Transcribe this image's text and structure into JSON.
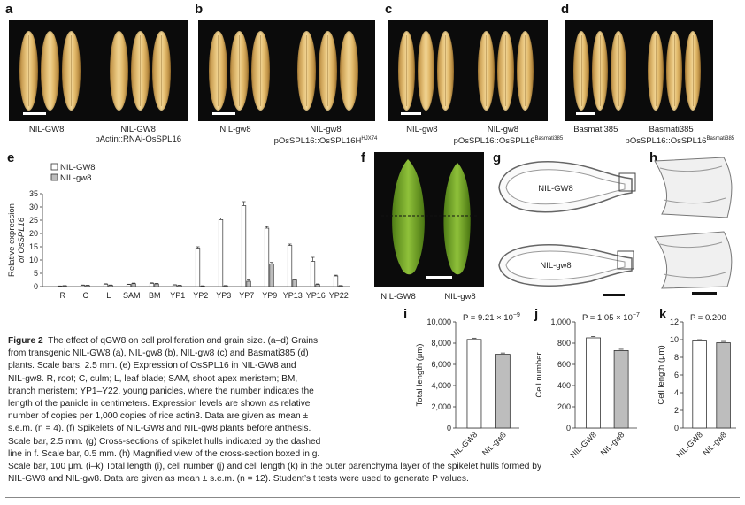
{
  "panels_top": [
    {
      "letter": "a",
      "left_label": "NIL-GW8",
      "right_label_1": "NIL-GW8",
      "right_label_2": "pActin::RNAi-OsSPL16"
    },
    {
      "letter": "b",
      "left_label": "NIL-gw8",
      "right_label_1": "NIL-gw8",
      "right_label_2": "pOsSPL16::OsSPL16H",
      "right_sup": "HJX74"
    },
    {
      "letter": "c",
      "left_label": "NIL-gw8",
      "right_label_1": "NIL-gw8",
      "right_label_2": "pOsSPL16::OsSPL16",
      "right_sup": "Basmati385"
    },
    {
      "letter": "d",
      "left_label": "Basmati385",
      "right_label_1": "Basmati385",
      "right_label_2": "pOsSPL16::OsSPL16",
      "right_sup": "Basmati385"
    }
  ],
  "panel_e": {
    "letter": "e",
    "legend": [
      "NIL-GW8",
      "NIL-gw8"
    ],
    "ylabel_1": "Relative expression",
    "ylabel_2": "of OsSPL16"
  },
  "panel_f": {
    "letter": "f",
    "labels": [
      "NIL-GW8",
      "NIL-gw8"
    ]
  },
  "panel_g": {
    "letter": "g",
    "labels": [
      "NIL-GW8",
      "NIL-gw8"
    ]
  },
  "panel_h": {
    "letter": "h"
  },
  "panel_i": {
    "letter": "i",
    "pvalue": "P = 9.21 × 10",
    "pexp": "−9"
  },
  "panel_j": {
    "letter": "j",
    "pvalue": "P = 1.05 × 10",
    "pexp": "−7"
  },
  "panel_k": {
    "letter": "k",
    "pvalue": "P = 0.200"
  },
  "chart_data": [
    {
      "type": "bar",
      "panel": "e",
      "categories": [
        "R",
        "C",
        "L",
        "SAM",
        "BM",
        "YP1",
        "YP2",
        "YP3",
        "YP7",
        "YP9",
        "YP13",
        "YP16",
        "YP22"
      ],
      "series": [
        {
          "name": "NIL-GW8",
          "values": [
            0.2,
            0.5,
            0.9,
            0.8,
            1.2,
            0.6,
            14.5,
            25.2,
            30.5,
            22.0,
            15.5,
            9.5,
            4.0
          ]
        },
        {
          "name": "NIL-gw8",
          "values": [
            0.3,
            0.4,
            0.5,
            1.1,
            1.0,
            0.4,
            0.2,
            0.3,
            2.0,
            8.5,
            2.5,
            0.8,
            0.3
          ]
        }
      ],
      "errors": [
        [
          0.05,
          0.1,
          0.15,
          0.1,
          0.2,
          0.1,
          0.5,
          0.6,
          1.5,
          0.6,
          0.5,
          1.5,
          0.3
        ],
        [
          0.05,
          0.1,
          0.1,
          0.2,
          0.2,
          0.1,
          0.1,
          0.1,
          0.5,
          0.6,
          0.3,
          0.2,
          0.1
        ]
      ],
      "ylabel": "Relative expression of OsSPL16",
      "ylim": [
        0,
        35
      ],
      "yticks": [
        0,
        5,
        10,
        15,
        20,
        25,
        30,
        35
      ]
    },
    {
      "type": "bar",
      "panel": "i",
      "categories": [
        "NIL-GW8",
        "NIL-gw8"
      ],
      "values": [
        8350,
        6950
      ],
      "ylabel": "Total length (μm)",
      "ylim": [
        0,
        10000
      ],
      "yticks": [
        "0",
        "2,000",
        "4,000",
        "6,000",
        "8,000",
        "10,000"
      ]
    },
    {
      "type": "bar",
      "panel": "j",
      "categories": [
        "NIL-GW8",
        "NIL-gw8"
      ],
      "values": [
        850,
        730
      ],
      "ylabel": "Cell number",
      "ylim": [
        0,
        1000
      ],
      "yticks": [
        "0",
        "200",
        "400",
        "600",
        "800",
        "1,000"
      ]
    },
    {
      "type": "bar",
      "panel": "k",
      "categories": [
        "NIL-GW8",
        "NIL-gw8"
      ],
      "values": [
        9.85,
        9.65
      ],
      "ylabel": "Cell length (μm)",
      "ylim": [
        0,
        12
      ],
      "yticks": [
        "0",
        "2",
        "4",
        "6",
        "8",
        "10",
        "12"
      ]
    }
  ],
  "caption": {
    "fig": "Figure 2",
    "lines": [
      "The effect of qGW8 on cell proliferation and grain size. (a–d) Grains",
      "from transgenic NIL-GW8 (a), NIL-gw8 (b), NIL-gw8 (c) and Basmati385 (d)",
      "plants. Scale bars, 2.5 mm. (e) Expression of OsSPL16 in NIL-GW8 and",
      "NIL-gw8. R, root; C, culm; L, leaf blade; SAM, shoot apex meristem; BM,",
      "branch meristem; YP1–Y22, young panicles, where the number indicates the",
      "length of the panicle in centimeters. Expression levels are shown as relative",
      "number of copies per 1,000 copies of rice actin3. Data are given as mean ±",
      "s.e.m. (n = 4). (f) Spikelets of NIL-GW8 and NIL-gw8 plants before anthesis.",
      "Scale bar, 2.5 mm. (g) Cross-sections of spikelet hulls indicated by the dashed",
      "line in f. Scale bar, 0.5 mm. (h) Magnified view of the cross-section boxed in g."
    ],
    "wide_lines": [
      "Scale bar, 100 μm. (i–k) Total length (i), cell number (j) and cell length (k) in the outer parenchyma layer of the spikelet hulls formed by",
      "NIL-GW8 and NIL-gw8. Data are given as mean ± s.e.m. (n = 12). Student’s t tests were used to generate P values."
    ]
  }
}
